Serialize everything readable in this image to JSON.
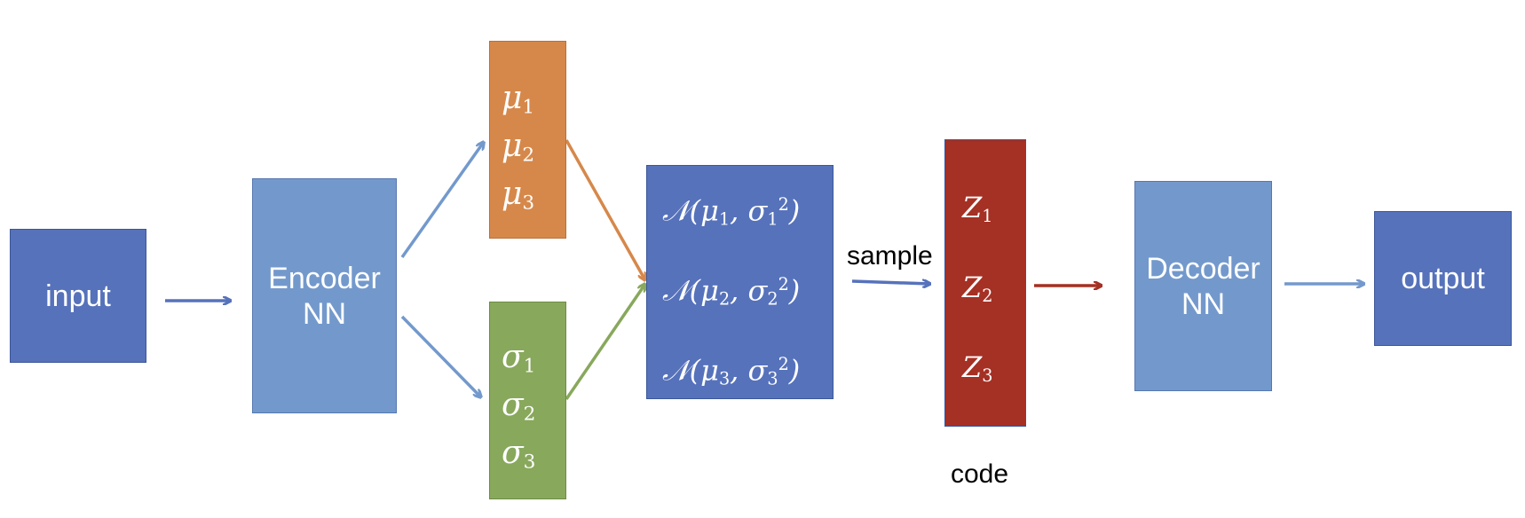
{
  "colors": {
    "dark_blue": "#5672bb",
    "light_blue": "#7399cc",
    "orange": "#d6884a",
    "green": "#88a85c",
    "red": "#a53024"
  },
  "input_label": "input",
  "encoder": {
    "line1": "Encoder",
    "line2": "NN"
  },
  "mu": {
    "symbol": "μ",
    "subs": [
      "1",
      "2",
      "3"
    ]
  },
  "sigma": {
    "symbol": "σ",
    "subs": [
      "1",
      "2",
      "3"
    ]
  },
  "normal": {
    "rows": [
      {
        "prefix": "𝒩(μ",
        "sub1": "1",
        "mid": ", σ",
        "sub2": "1",
        "sup": "2",
        "suffix": ")"
      },
      {
        "prefix": "𝒩(μ",
        "sub1": "2",
        "mid": ", σ",
        "sub2": "2",
        "sup": "2",
        "suffix": ")"
      },
      {
        "prefix": "𝒩(μ",
        "sub1": "3",
        "mid": ", σ",
        "sub2": "3",
        "sup": "2",
        "suffix": ")"
      }
    ]
  },
  "sample_label": "sample",
  "code": {
    "symbol": "Z",
    "subs": [
      "1",
      "2",
      "3"
    ],
    "caption": "code"
  },
  "decoder": {
    "line1": "Decoder",
    "line2": "NN"
  },
  "output_label": "output"
}
